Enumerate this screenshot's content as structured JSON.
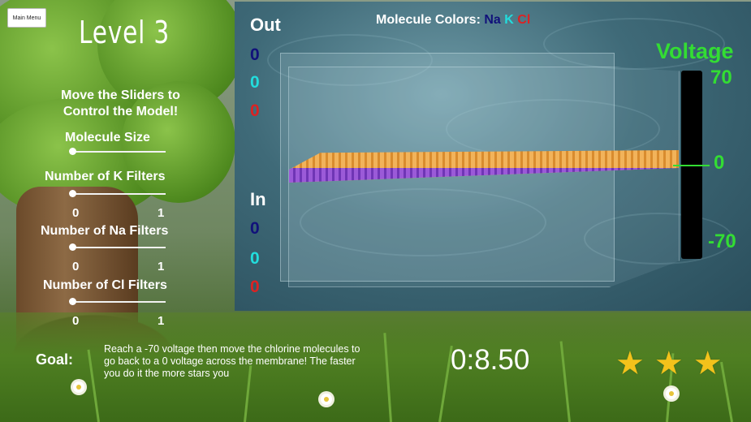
{
  "menu": {
    "main_menu_label": "Main Menu"
  },
  "level": {
    "title": "Level 3"
  },
  "instructions": "Move the Sliders to Control the Model!",
  "sliders": [
    {
      "label": "Molecule Size",
      "value": 0
    },
    {
      "label": "Number of K Filters",
      "value": 0,
      "min_label": "0",
      "max_label": "1"
    },
    {
      "label": "Number of Na Filters",
      "value": 0,
      "min_label": "0",
      "max_label": "1"
    },
    {
      "label": "Number of Cl Filters",
      "value": 0,
      "min_label": "0",
      "max_label": "1"
    }
  ],
  "molecule_colors": {
    "label": "Molecule Colors:",
    "na": "Na",
    "k": "K",
    "cl": "Cl",
    "na_color": "#11117a",
    "k_color": "#22dddd",
    "cl_color": "#dd2222"
  },
  "out": {
    "label": "Out",
    "na": "0",
    "k": "0",
    "cl": "0"
  },
  "in": {
    "label": "In",
    "na": "0",
    "k": "0",
    "cl": "0"
  },
  "voltage": {
    "title": "Voltage",
    "max": "70",
    "zero": "0",
    "min": "-70",
    "current": 0,
    "color": "#33dd33"
  },
  "goal": {
    "label": "Goal:",
    "text": "Reach a -70 voltage then move the chlorine molecules to go back to a 0 voltage across the membrane! The faster you do it the more stars you"
  },
  "timer": "0:8.50",
  "stars": {
    "earned": 3,
    "total": 3,
    "color": "#f3c21b"
  }
}
